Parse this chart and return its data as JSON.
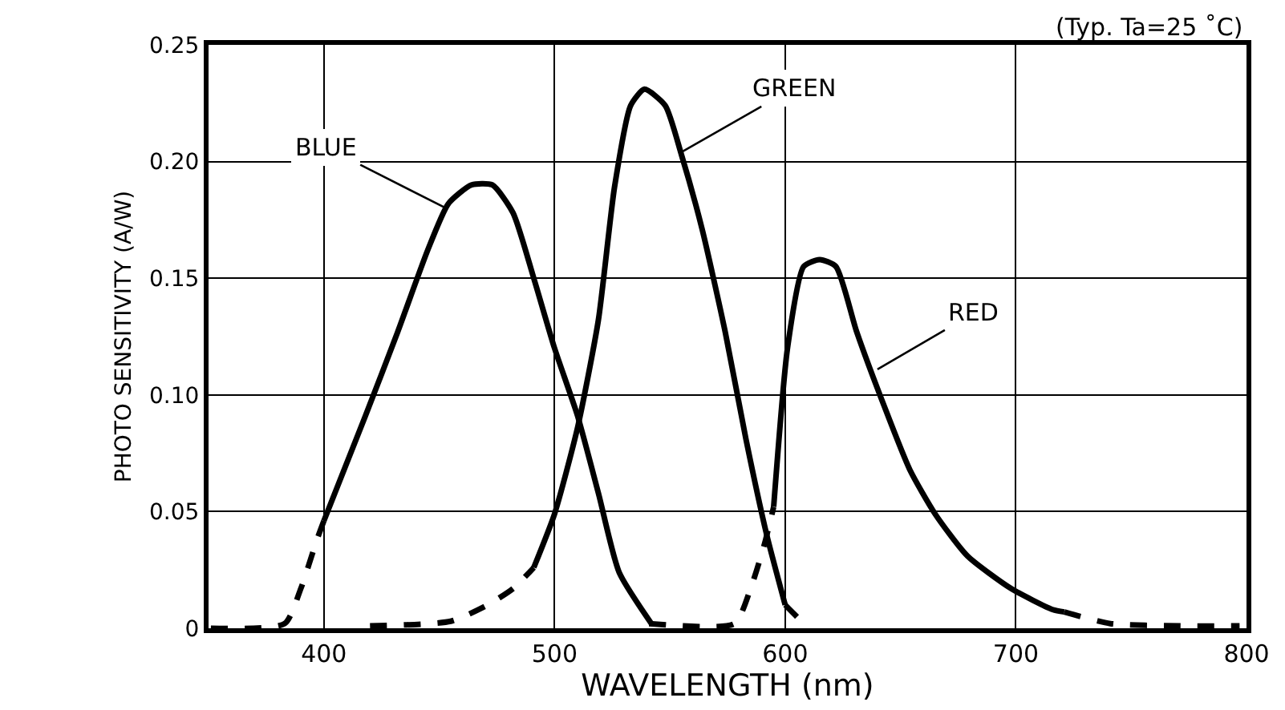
{
  "chart_data": {
    "type": "line",
    "xlabel": "WAVELENGTH (nm)",
    "ylabel": "PHOTO SENSITIVITY (A/W)",
    "xlim": [
      350,
      800
    ],
    "xticks": [
      400,
      500,
      600,
      700,
      800
    ],
    "ylim": [
      0,
      0.25
    ],
    "yticks": [
      0,
      0.05,
      {
        "value": 0.1,
        "label": "0.10"
      },
      0.15,
      {
        "value": 0.2,
        "label": "0.20"
      },
      0.25
    ],
    "grid": true,
    "marker": "none",
    "series": [
      {
        "color": "#000000",
        "line_style": "solid",
        "x": [
          400,
          418,
          432,
          445,
          454,
          464,
          473,
          482,
          491,
          500,
          510,
          519,
          528,
          542
        ],
        "values": [
          0.046,
          0.091,
          0.127,
          0.162,
          0.182,
          0.19,
          0.19,
          0.178,
          0.15,
          0.12,
          0.091,
          0.058,
          0.024,
          0.002
        ]
      },
      {
        "color": "#000000",
        "line_style": "dashed",
        "x": [
          351,
          383,
          390,
          397,
          400
        ],
        "values": [
          0,
          0.002,
          0.017,
          0.038,
          0.046
        ]
      },
      {
        "color": "#000000",
        "line_style": "solid",
        "x": [
          491,
          500,
          510,
          519,
          526,
          533,
          539,
          548,
          555,
          564,
          574,
          583,
          592,
          600
        ],
        "values": [
          0.026,
          0.049,
          0.086,
          0.132,
          0.189,
          0.224,
          0.231,
          0.224,
          0.203,
          0.171,
          0.127,
          0.081,
          0.04,
          0.01
        ]
      },
      {
        "color": "#000000",
        "line_style": "dashed",
        "x": [
          420,
          455,
          471,
          482,
          491
        ],
        "values": [
          0.001,
          0.003,
          0.01,
          0.017,
          0.026
        ]
      },
      {
        "color": "#000000",
        "line_style": "dashed",
        "x": [
          600,
          608
        ],
        "values": [
          0.01,
          0.002
        ]
      },
      {
        "color": "#000000",
        "line_style": "solid",
        "x": [
          595,
          601,
          608,
          615,
          622,
          631,
          643,
          654,
          665,
          679,
          698,
          716,
          721
        ],
        "values": [
          0.052,
          0.12,
          0.155,
          0.158,
          0.155,
          0.127,
          0.095,
          0.068,
          0.049,
          0.031,
          0.017,
          0.008,
          0.007
        ]
      },
      {
        "color": "#000000",
        "line_style": "dashed",
        "x": [
          541,
          578,
          585,
          591,
          595
        ],
        "values": [
          0.002,
          0.002,
          0.017,
          0.036,
          0.052
        ]
      },
      {
        "color": "#000000",
        "line_style": "dashed",
        "x": [
          721,
          741,
          771,
          797
        ],
        "values": [
          0.007,
          0.002,
          0.001,
          0.001
        ]
      }
    ],
    "annotations": [
      {
        "text": "BLUE",
        "x": 453,
        "y": 0.18
      },
      {
        "text": "GREEN",
        "x": 555,
        "y": 0.204
      },
      {
        "text": "RED",
        "x": 640,
        "y": 0.111
      },
      "(Typ. Ta=25 ˚C)"
    ]
  }
}
